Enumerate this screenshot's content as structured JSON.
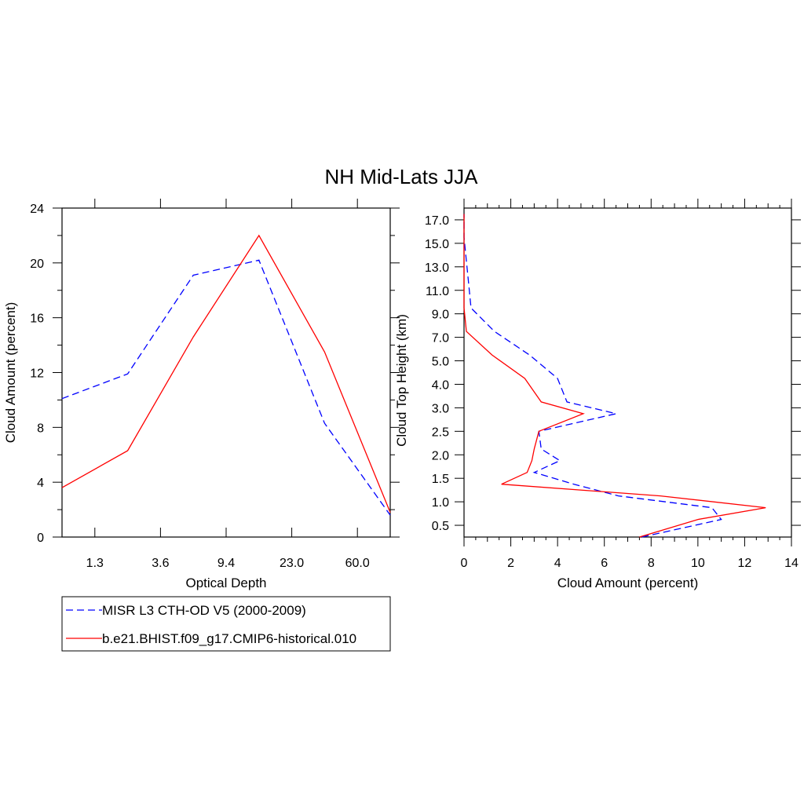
{
  "title": "NH Mid-Lats JJA",
  "colors": {
    "obs": "#0000ff",
    "model": "#ff0000",
    "axis": "#000000"
  },
  "legend": [
    {
      "key": "obs",
      "label": "MISR L3 CTH-OD V5 (2000-2009)",
      "style": "dashed"
    },
    {
      "key": "model",
      "label": "b.e21.BHIST.f09_g17.CMIP6-historical.010",
      "style": "solid"
    }
  ],
  "chart_data": [
    {
      "type": "line",
      "title": "",
      "xlabel": "Optical Depth",
      "ylabel": "Cloud Amount (percent)",
      "xticklabels": [
        "1.3",
        "3.6",
        "9.4",
        "23.0",
        "60.0"
      ],
      "xticks": [
        1,
        3,
        5,
        7,
        9
      ],
      "xlim": [
        0,
        10
      ],
      "yticks": [
        0,
        4,
        8,
        12,
        16,
        20,
        24
      ],
      "ylim": [
        0,
        24
      ],
      "yminor": 2,
      "x": [
        0,
        2,
        4,
        6,
        8,
        10
      ],
      "series": [
        {
          "name": "MISR L3 CTH-OD V5 (2000-2009)",
          "key": "obs",
          "values": [
            10.1,
            11.9,
            19.1,
            20.2,
            8.3,
            1.6
          ]
        },
        {
          "name": "b.e21.BHIST.f09_g17.CMIP6-historical.010",
          "key": "model",
          "values": [
            3.6,
            6.3,
            14.6,
            22.0,
            13.5,
            1.8
          ]
        }
      ]
    },
    {
      "type": "line",
      "title": "",
      "xlabel": "Cloud Amount (percent)",
      "ylabel": "Cloud Top Height (km)",
      "xticks": [
        0,
        2,
        4,
        6,
        8,
        10,
        12,
        14
      ],
      "xlim": [
        0,
        14
      ],
      "xminor": 1,
      "yticklabels": [
        "0.5",
        "1.0",
        "1.5",
        "2.0",
        "2.5",
        "3.0",
        "4.0",
        "5.0",
        "7.0",
        "9.0",
        "11.0",
        "13.0",
        "15.0",
        "17.0"
      ],
      "yticks": [
        0.5,
        1.5,
        2.5,
        3.5,
        4.5,
        5.5,
        6.5,
        7.5,
        8.5,
        9.5,
        10.5,
        11.5,
        12.5,
        13.5
      ],
      "ylim": [
        0,
        14
      ],
      "y": [
        0,
        0.75,
        1.25,
        1.75,
        2.25,
        2.75,
        3.25,
        3.75,
        4.5,
        5.25,
        5.75,
        6.75,
        7.75,
        8.75,
        9.75,
        10.75,
        11.75,
        12.75,
        13.75
      ],
      "series": [
        {
          "name": "MISR L3 CTH-OD V5 (2000-2009)",
          "key": "obs",
          "values": [
            7.6,
            11.0,
            10.6,
            6.6,
            4.7,
            3.0,
            4.1,
            3.3,
            3.2,
            6.5,
            4.4,
            4.0,
            2.8,
            1.3,
            0.3,
            0.2,
            0.1,
            0.0,
            0.0
          ]
        },
        {
          "name": "b.e21.BHIST.f09_g17.CMIP6-historical.010",
          "key": "model",
          "values": [
            7.5,
            10.0,
            12.9,
            8.4,
            1.6,
            2.7,
            2.9,
            3.0,
            3.2,
            5.1,
            3.3,
            2.6,
            1.2,
            0.1,
            0.0,
            0.0,
            0.0,
            0.0,
            0.0
          ]
        }
      ]
    }
  ]
}
